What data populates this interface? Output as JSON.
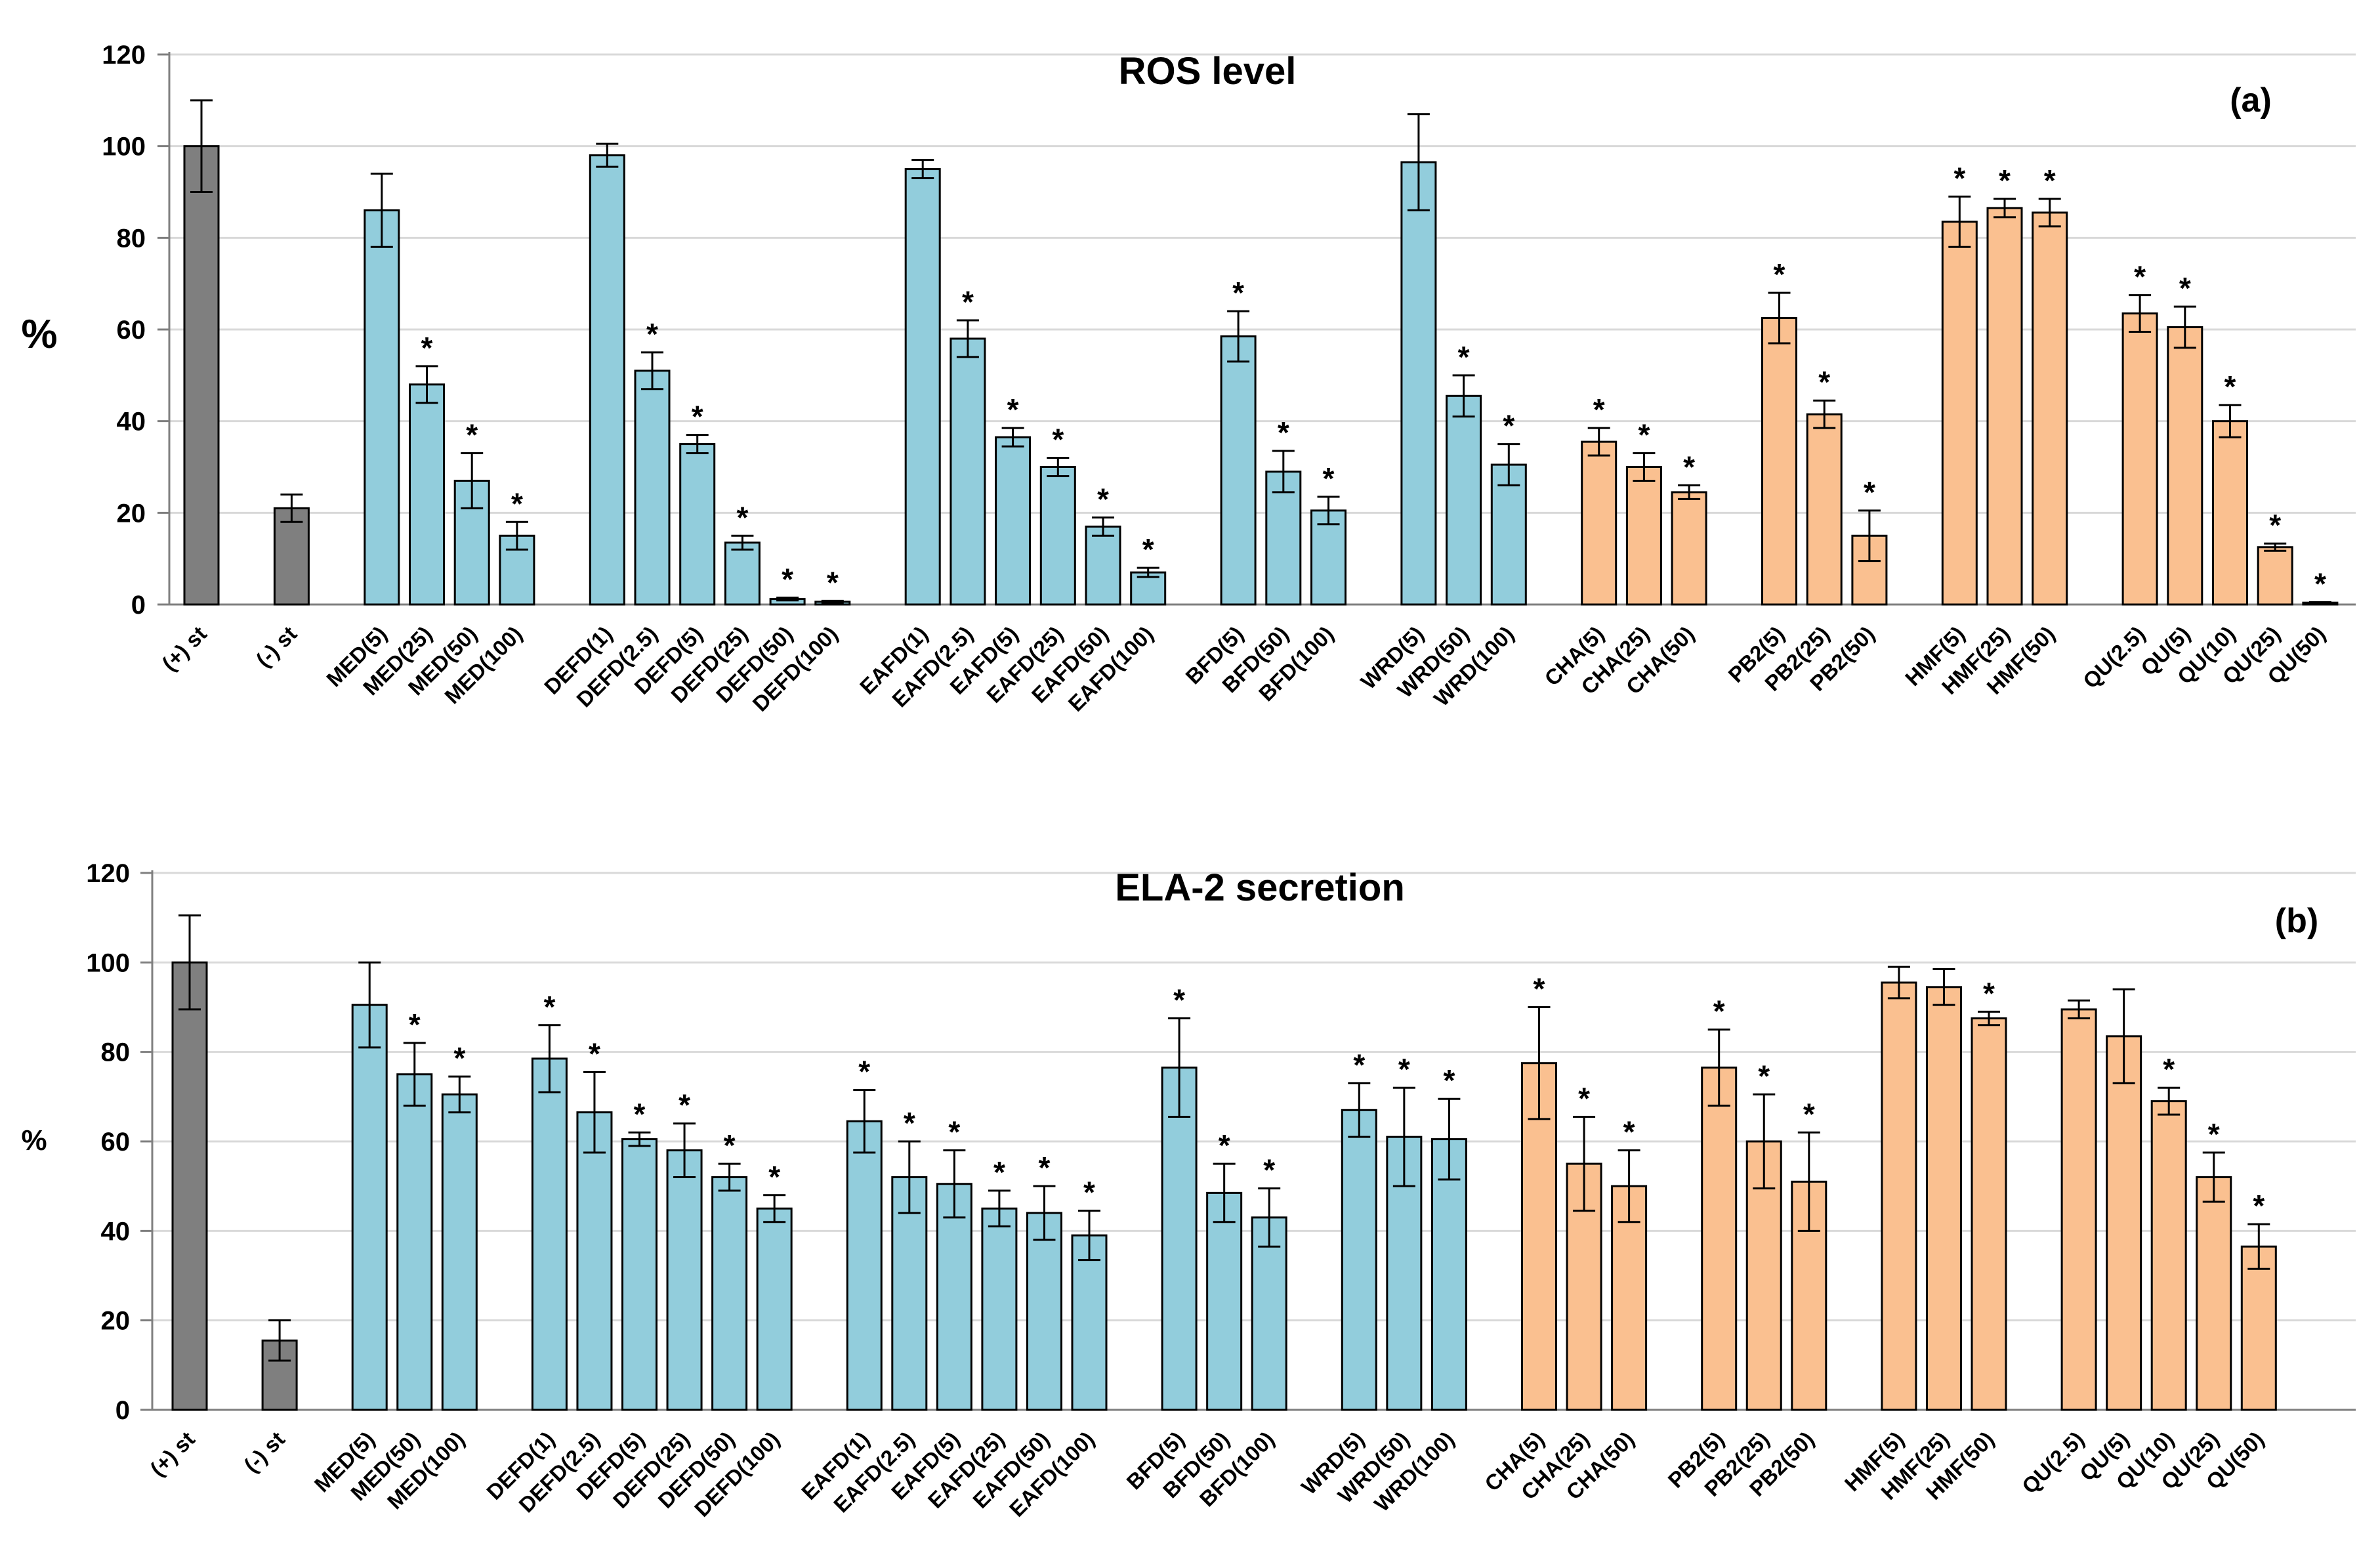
{
  "chart_data": [
    {
      "panel": "(a)",
      "type": "bar",
      "title": "ROS level",
      "ylabel": "%",
      "ylim": [
        0,
        120
      ],
      "yticks": [
        "0",
        "20",
        "40",
        "60",
        "80",
        "100",
        "120"
      ],
      "grid": true,
      "colors": {
        "standard": "#7f7f7f",
        "extract": "#92cddc",
        "compound": "#fac090"
      },
      "bars": [
        {
          "label": "(+) st",
          "value": 100,
          "error": 10,
          "sig": false,
          "group": "standard",
          "slot": 0
        },
        {
          "label": "(-) st",
          "value": 21,
          "error": 3,
          "sig": false,
          "group": "standard",
          "slot": 2
        },
        {
          "label": "MED(5)",
          "value": 86,
          "error": 8,
          "sig": false,
          "group": "extract",
          "slot": 4
        },
        {
          "label": "MED(25)",
          "value": 48,
          "error": 4,
          "sig": true,
          "group": "extract",
          "slot": 5
        },
        {
          "label": "MED(50)",
          "value": 27,
          "error": 6,
          "sig": true,
          "group": "extract",
          "slot": 6
        },
        {
          "label": "MED(100)",
          "value": 15,
          "error": 3,
          "sig": true,
          "group": "extract",
          "slot": 7
        },
        {
          "label": "DEFD(1)",
          "value": 98,
          "error": 2.5,
          "sig": false,
          "group": "extract",
          "slot": 9
        },
        {
          "label": "DEFD(2.5)",
          "value": 51,
          "error": 4,
          "sig": true,
          "group": "extract",
          "slot": 10
        },
        {
          "label": "DEFD(5)",
          "value": 35,
          "error": 2,
          "sig": true,
          "group": "extract",
          "slot": 11
        },
        {
          "label": "DEFD(25)",
          "value": 13.5,
          "error": 1.5,
          "sig": true,
          "group": "extract",
          "slot": 12
        },
        {
          "label": "DEFD(50)",
          "value": 1.2,
          "error": 0.3,
          "sig": true,
          "group": "extract",
          "slot": 13
        },
        {
          "label": "DEFD(100)",
          "value": 0.6,
          "error": 0.2,
          "sig": true,
          "group": "extract",
          "slot": 14
        },
        {
          "label": "EAFD(1)",
          "value": 95,
          "error": 2,
          "sig": false,
          "group": "extract",
          "slot": 16
        },
        {
          "label": "EAFD(2.5)",
          "value": 58,
          "error": 4,
          "sig": true,
          "group": "extract",
          "slot": 17
        },
        {
          "label": "EAFD(5)",
          "value": 36.5,
          "error": 2,
          "sig": true,
          "group": "extract",
          "slot": 18
        },
        {
          "label": "EAFD(25)",
          "value": 30,
          "error": 2,
          "sig": true,
          "group": "extract",
          "slot": 19
        },
        {
          "label": "EAFD(50)",
          "value": 17,
          "error": 2,
          "sig": true,
          "group": "extract",
          "slot": 20
        },
        {
          "label": "EAFD(100)",
          "value": 7,
          "error": 1,
          "sig": true,
          "group": "extract",
          "slot": 21
        },
        {
          "label": "BFD(5)",
          "value": 58.5,
          "error": 5.5,
          "sig": true,
          "group": "extract",
          "slot": 23
        },
        {
          "label": "BFD(50)",
          "value": 29,
          "error": 4.5,
          "sig": true,
          "group": "extract",
          "slot": 24
        },
        {
          "label": "BFD(100)",
          "value": 20.5,
          "error": 3,
          "sig": true,
          "group": "extract",
          "slot": 25
        },
        {
          "label": "WRD(5)",
          "value": 96.5,
          "error": 10.5,
          "sig": false,
          "group": "extract",
          "slot": 27
        },
        {
          "label": "WRD(50)",
          "value": 45.5,
          "error": 4.5,
          "sig": true,
          "group": "extract",
          "slot": 28
        },
        {
          "label": "WRD(100)",
          "value": 30.5,
          "error": 4.5,
          "sig": true,
          "group": "extract",
          "slot": 29
        },
        {
          "label": "CHA(5)",
          "value": 35.5,
          "error": 3,
          "sig": true,
          "group": "compound",
          "slot": 31
        },
        {
          "label": "CHA(25)",
          "value": 30,
          "error": 3,
          "sig": true,
          "group": "compound",
          "slot": 32
        },
        {
          "label": "CHA(50)",
          "value": 24.5,
          "error": 1.5,
          "sig": true,
          "group": "compound",
          "slot": 33
        },
        {
          "label": "PB2(5)",
          "value": 62.5,
          "error": 5.5,
          "sig": true,
          "group": "compound",
          "slot": 35
        },
        {
          "label": "PB2(25)",
          "value": 41.5,
          "error": 3,
          "sig": true,
          "group": "compound",
          "slot": 36
        },
        {
          "label": "PB2(50)",
          "value": 15,
          "error": 5.5,
          "sig": true,
          "group": "compound",
          "slot": 37
        },
        {
          "label": "HMF(5)",
          "value": 83.5,
          "error": 5.5,
          "sig": true,
          "group": "compound",
          "slot": 39
        },
        {
          "label": "HMF(25)",
          "value": 86.5,
          "error": 2,
          "sig": true,
          "group": "compound",
          "slot": 40
        },
        {
          "label": "HMF(50)",
          "value": 85.5,
          "error": 3,
          "sig": true,
          "group": "compound",
          "slot": 41
        },
        {
          "label": "QU(2.5)",
          "value": 63.5,
          "error": 4,
          "sig": true,
          "group": "compound",
          "slot": 43
        },
        {
          "label": "QU(5)",
          "value": 60.5,
          "error": 4.5,
          "sig": true,
          "group": "compound",
          "slot": 44
        },
        {
          "label": "QU(10)",
          "value": 40,
          "error": 3.5,
          "sig": true,
          "group": "compound",
          "slot": 45
        },
        {
          "label": "QU(25)",
          "value": 12.5,
          "error": 0.8,
          "sig": true,
          "group": "compound",
          "slot": 46
        },
        {
          "label": "QU(50)",
          "value": 0.4,
          "error": 0.1,
          "sig": true,
          "group": "compound",
          "slot": 47
        }
      ]
    },
    {
      "panel": "(b)",
      "type": "bar",
      "title": "ELA-2 secretion",
      "ylabel": "%",
      "ylim": [
        0,
        120
      ],
      "yticks": [
        "0",
        "20",
        "40",
        "60",
        "80",
        "100",
        "120"
      ],
      "grid": true,
      "colors": {
        "standard": "#7f7f7f",
        "extract": "#92cddc",
        "compound": "#fac090"
      },
      "bars": [
        {
          "label": "(+) st",
          "value": 100,
          "error": 10.5,
          "sig": false,
          "group": "standard",
          "slot": 0
        },
        {
          "label": "(-) st",
          "value": 15.5,
          "error": 4.5,
          "sig": false,
          "group": "standard",
          "slot": 2
        },
        {
          "label": "MED(5)",
          "value": 90.5,
          "error": 9.5,
          "sig": false,
          "group": "extract",
          "slot": 4
        },
        {
          "label": "MED(50)",
          "value": 75,
          "error": 7,
          "sig": true,
          "group": "extract",
          "slot": 5
        },
        {
          "label": "MED(100)",
          "value": 70.5,
          "error": 4,
          "sig": true,
          "group": "extract",
          "slot": 6
        },
        {
          "label": "DEFD(1)",
          "value": 78.5,
          "error": 7.5,
          "sig": true,
          "group": "extract",
          "slot": 8
        },
        {
          "label": "DEFD(2.5)",
          "value": 66.5,
          "error": 9,
          "sig": true,
          "group": "extract",
          "slot": 9
        },
        {
          "label": "DEFD(5)",
          "value": 60.5,
          "error": 1.5,
          "sig": true,
          "group": "extract",
          "slot": 10
        },
        {
          "label": "DEFD(25)",
          "value": 58,
          "error": 6,
          "sig": true,
          "group": "extract",
          "slot": 11
        },
        {
          "label": "DEFD(50)",
          "value": 52,
          "error": 3,
          "sig": true,
          "group": "extract",
          "slot": 12
        },
        {
          "label": "DEFD(100)",
          "value": 45,
          "error": 3,
          "sig": true,
          "group": "extract",
          "slot": 13
        },
        {
          "label": "EAFD(1)",
          "value": 64.5,
          "error": 7,
          "sig": true,
          "group": "extract",
          "slot": 15
        },
        {
          "label": "EAFD(2.5)",
          "value": 52,
          "error": 8,
          "sig": true,
          "group": "extract",
          "slot": 16
        },
        {
          "label": "EAFD(5)",
          "value": 50.5,
          "error": 7.5,
          "sig": true,
          "group": "extract",
          "slot": 17
        },
        {
          "label": "EAFD(25)",
          "value": 45,
          "error": 4,
          "sig": true,
          "group": "extract",
          "slot": 18
        },
        {
          "label": "EAFD(50)",
          "value": 44,
          "error": 6,
          "sig": true,
          "group": "extract",
          "slot": 19
        },
        {
          "label": "EAFD(100)",
          "value": 39,
          "error": 5.5,
          "sig": true,
          "group": "extract",
          "slot": 20
        },
        {
          "label": "BFD(5)",
          "value": 76.5,
          "error": 11,
          "sig": true,
          "group": "extract",
          "slot": 22
        },
        {
          "label": "BFD(50)",
          "value": 48.5,
          "error": 6.5,
          "sig": true,
          "group": "extract",
          "slot": 23
        },
        {
          "label": "BFD(100)",
          "value": 43,
          "error": 6.5,
          "sig": true,
          "group": "extract",
          "slot": 24
        },
        {
          "label": "WRD(5)",
          "value": 67,
          "error": 6,
          "sig": true,
          "group": "extract",
          "slot": 26
        },
        {
          "label": "WRD(50)",
          "value": 61,
          "error": 11,
          "sig": true,
          "group": "extract",
          "slot": 27
        },
        {
          "label": "WRD(100)",
          "value": 60.5,
          "error": 9,
          "sig": true,
          "group": "extract",
          "slot": 28
        },
        {
          "label": "CHA(5)",
          "value": 77.5,
          "error": 12.5,
          "sig": true,
          "group": "compound",
          "slot": 30
        },
        {
          "label": "CHA(25)",
          "value": 55,
          "error": 10.5,
          "sig": true,
          "group": "compound",
          "slot": 31
        },
        {
          "label": "CHA(50)",
          "value": 50,
          "error": 8,
          "sig": true,
          "group": "compound",
          "slot": 32
        },
        {
          "label": "PB2(5)",
          "value": 76.5,
          "error": 8.5,
          "sig": true,
          "group": "compound",
          "slot": 34
        },
        {
          "label": "PB2(25)",
          "value": 60,
          "error": 10.5,
          "sig": true,
          "group": "compound",
          "slot": 35
        },
        {
          "label": "PB2(50)",
          "value": 51,
          "error": 11,
          "sig": true,
          "group": "compound",
          "slot": 36
        },
        {
          "label": "HMF(5)",
          "value": 95.5,
          "error": 3.5,
          "sig": false,
          "group": "compound",
          "slot": 38
        },
        {
          "label": "HMF(25)",
          "value": 94.5,
          "error": 4,
          "sig": false,
          "group": "compound",
          "slot": 39
        },
        {
          "label": "HMF(50)",
          "value": 87.5,
          "error": 1.5,
          "sig": true,
          "group": "compound",
          "slot": 40
        },
        {
          "label": "QU(2.5)",
          "value": 89.5,
          "error": 2,
          "sig": false,
          "group": "compound",
          "slot": 42
        },
        {
          "label": "QU(5)",
          "value": 83.5,
          "error": 10.5,
          "sig": false,
          "group": "compound",
          "slot": 43
        },
        {
          "label": "QU(10)",
          "value": 69,
          "error": 3,
          "sig": true,
          "group": "compound",
          "slot": 44
        },
        {
          "label": "QU(25)",
          "value": 52,
          "error": 5.5,
          "sig": true,
          "group": "compound",
          "slot": 45
        },
        {
          "label": "QU(50)",
          "value": 36.5,
          "error": 5,
          "sig": true,
          "group": "compound",
          "slot": 46
        }
      ]
    }
  ]
}
